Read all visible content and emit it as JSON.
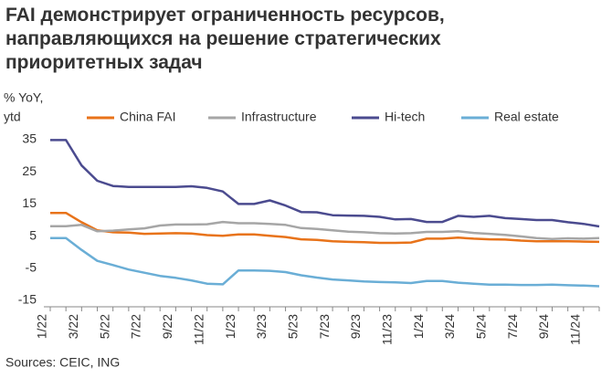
{
  "chart_data": {
    "type": "line",
    "title": "FAI демонстрирует ограниченность ресурсов, направляющихся на решение стратегических приоритетных задач",
    "y_label": [
      "% YoY,",
      "ytd"
    ],
    "source": "Sources: CEIC, ING",
    "categories": [
      "1/22",
      null,
      "3/22",
      null,
      "5/22",
      null,
      "7/22",
      null,
      "9/22",
      null,
      "11/22",
      null,
      "1/23",
      null,
      "3/23",
      null,
      "5/23",
      null,
      "7/23",
      null,
      "9/23",
      null,
      "11/23",
      null,
      "1/24",
      null,
      "3/24",
      null,
      "5/24",
      null,
      "7/24",
      null,
      "9/24",
      null,
      "11/24",
      null
    ],
    "series": [
      {
        "name": "China FAI",
        "color": "#e8731a",
        "values": [
          12.2,
          12.2,
          9.3,
          6.8,
          6.2,
          6.1,
          5.7,
          5.8,
          5.9,
          5.8,
          5.3,
          5.1,
          5.5,
          5.5,
          5.1,
          4.7,
          4.0,
          3.8,
          3.4,
          3.2,
          3.1,
          2.9,
          2.9,
          3.0,
          4.2,
          4.2,
          4.5,
          4.2,
          4.0,
          3.9,
          3.6,
          3.4,
          3.4,
          3.4,
          3.3,
          3.2
        ]
      },
      {
        "name": "Infrastructure",
        "color": "#a6a6a6",
        "values": [
          8.1,
          8.1,
          8.5,
          6.5,
          6.7,
          7.1,
          7.4,
          8.3,
          8.6,
          8.6,
          8.7,
          9.4,
          9.0,
          9.0,
          8.8,
          8.5,
          7.5,
          7.2,
          6.8,
          6.4,
          6.2,
          5.9,
          5.8,
          5.9,
          6.3,
          6.3,
          6.5,
          6.0,
          5.7,
          5.4,
          4.9,
          4.4,
          4.1,
          4.3,
          4.2,
          4.4
        ]
      },
      {
        "name": "Hi-tech",
        "color": "#4b4b8f",
        "values": [
          34.9,
          34.9,
          27,
          22.2,
          20.6,
          20.3,
          20.3,
          20.3,
          20.3,
          20.5,
          20,
          18.9,
          15,
          15,
          16.1,
          14.5,
          12.5,
          12.4,
          11.5,
          11.4,
          11.3,
          11,
          10.2,
          10.3,
          9.4,
          9.4,
          11.3,
          11,
          11.3,
          10.6,
          10.3,
          10,
          10,
          9.3,
          8.8,
          8.0
        ]
      },
      {
        "name": "Real estate",
        "color": "#6aaed6",
        "values": [
          4.4,
          4.4,
          0.7,
          -2.7,
          -4,
          -5.4,
          -6.4,
          -7.4,
          -8,
          -8.8,
          -9.8,
          -10,
          -5.7,
          -5.7,
          -5.8,
          -6.2,
          -7.2,
          -7.9,
          -8.5,
          -8.8,
          -9.1,
          -9.3,
          -9.4,
          -9.6,
          -9,
          -9,
          -9.5,
          -9.8,
          -10.1,
          -10.1,
          -10.2,
          -10.2,
          -10.1,
          -10.3,
          -10.4,
          -10.6
        ]
      }
    ],
    "ylim": [
      -17,
      35
    ],
    "yticks": [
      35,
      25,
      15,
      5,
      -5,
      -15
    ],
    "grid": false
  }
}
